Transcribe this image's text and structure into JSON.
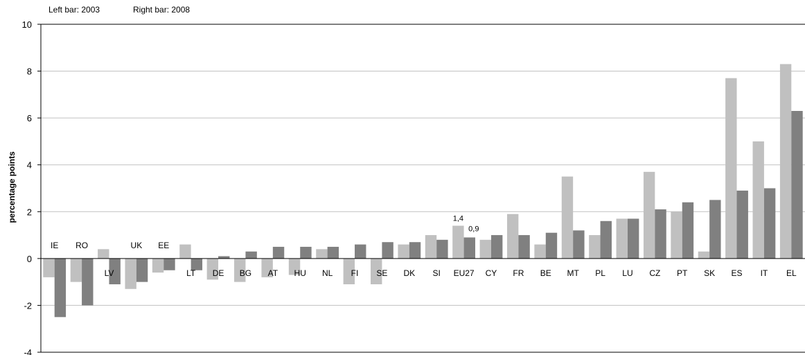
{
  "chart_data": {
    "type": "bar",
    "note_left": "Left bar: 2003",
    "note_right": "Right bar: 2008",
    "ylabel": "percentage points",
    "ylim": [
      -4,
      10
    ],
    "yticks": [
      -4,
      -2,
      0,
      2,
      4,
      6,
      8,
      10
    ],
    "grid": true,
    "categories": [
      "IE",
      "RO",
      "LV",
      "UK",
      "EE",
      "LT",
      "DE",
      "BG",
      "AT",
      "HU",
      "NL",
      "FI",
      "SE",
      "DK",
      "SI",
      "EU27",
      "CY",
      "FR",
      "BE",
      "MT",
      "PL",
      "LU",
      "CZ",
      "PT",
      "SK",
      "ES",
      "IT",
      "EL"
    ],
    "series": [
      {
        "name": "2003",
        "color": "#c0c0c0",
        "values": [
          -0.8,
          -1.0,
          0.4,
          -1.3,
          -0.6,
          0.6,
          -0.9,
          -1.0,
          -0.8,
          -0.7,
          0.4,
          -1.1,
          -1.1,
          0.6,
          1.0,
          1.4,
          0.8,
          1.9,
          0.6,
          3.5,
          1.0,
          1.7,
          3.7,
          2.0,
          0.3,
          7.7,
          5.0,
          8.3
        ]
      },
      {
        "name": "2008",
        "color": "#808080",
        "values": [
          -2.5,
          -2.0,
          -1.1,
          -1.0,
          -0.5,
          -0.5,
          0.1,
          0.3,
          0.5,
          0.5,
          0.5,
          0.6,
          0.7,
          0.7,
          0.8,
          0.9,
          1.0,
          1.0,
          1.1,
          1.2,
          1.6,
          1.7,
          2.1,
          2.4,
          2.5,
          2.9,
          3.0,
          6.3
        ]
      }
    ],
    "data_labels": [
      {
        "category": "EU27",
        "series": "2003",
        "text": "1,4"
      },
      {
        "category": "EU27",
        "series": "2008",
        "text": "0,9"
      }
    ]
  }
}
